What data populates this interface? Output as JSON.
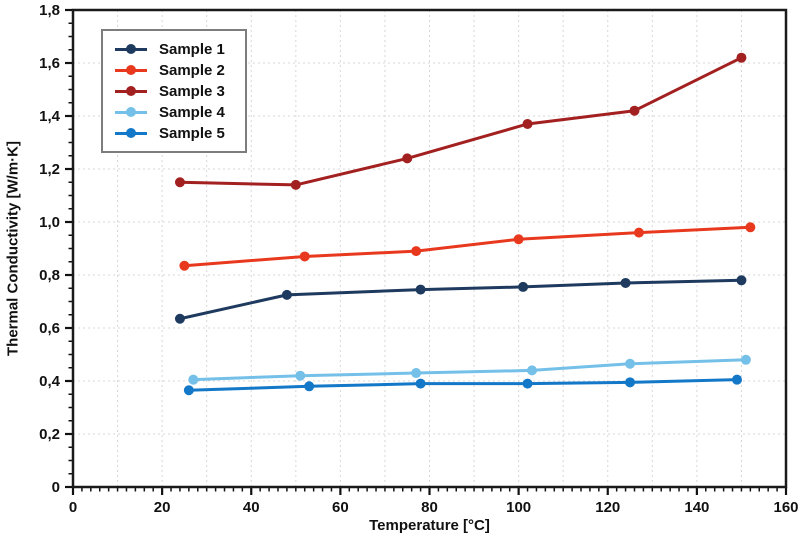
{
  "chart_data": {
    "type": "line",
    "title": "",
    "xlabel": "Temperature [°C]",
    "ylabel": "Thermal Conductivity [W/m·K]",
    "xlim": [
      0,
      160
    ],
    "ylim": [
      0,
      1.8
    ],
    "x_major_ticks": [
      0,
      20,
      40,
      60,
      80,
      100,
      120,
      140,
      160
    ],
    "x_tick_labels": [
      "0",
      "20",
      "40",
      "60",
      "80",
      "100",
      "120",
      "140",
      "160"
    ],
    "x_minor_step": 2,
    "y_major_ticks": [
      0,
      0.2,
      0.4,
      0.6,
      0.8,
      1.0,
      1.2,
      1.4,
      1.6,
      1.8
    ],
    "y_tick_labels": [
      "0",
      "0,2",
      "0,4",
      "0,6",
      "0,8",
      "1,0",
      "1,2",
      "1,4",
      "1,6",
      "1,8"
    ],
    "y_minor_step": 0.05,
    "grid": {
      "on": true,
      "x_interval": 10,
      "y_interval": 0.2,
      "style": "dashed",
      "color": "#d7d7d7"
    },
    "legend_position": "upper left",
    "frame_color": "#1a1a1a",
    "series": [
      {
        "name": "Sample 1",
        "color": "#1E3A5F",
        "x": [
          24,
          48,
          78,
          101,
          124,
          150
        ],
        "y": [
          0.635,
          0.725,
          0.745,
          0.755,
          0.77,
          0.78
        ]
      },
      {
        "name": "Sample 2",
        "color": "#E8391F",
        "x": [
          25,
          52,
          77,
          100,
          127,
          152
        ],
        "y": [
          0.835,
          0.87,
          0.89,
          0.935,
          0.96,
          0.98
        ]
      },
      {
        "name": "Sample 3",
        "color": "#A32020",
        "x": [
          24,
          50,
          75,
          102,
          126,
          150
        ],
        "y": [
          1.15,
          1.14,
          1.24,
          1.37,
          1.42,
          1.62
        ]
      },
      {
        "name": "Sample 4",
        "color": "#74C0E8",
        "x": [
          27,
          51,
          77,
          103,
          125,
          151
        ],
        "y": [
          0.405,
          0.42,
          0.43,
          0.44,
          0.465,
          0.48
        ]
      },
      {
        "name": "Sample 5",
        "color": "#1478C8",
        "x": [
          26,
          53,
          78,
          102,
          125,
          149
        ],
        "y": [
          0.365,
          0.38,
          0.39,
          0.39,
          0.395,
          0.405
        ]
      }
    ]
  }
}
